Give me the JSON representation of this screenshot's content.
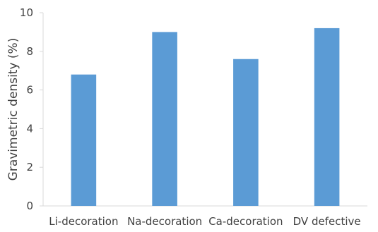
{
  "chart_data": {
    "type": "bar",
    "title": "",
    "xlabel": "",
    "ylabel": "Gravimetric density (%)",
    "categories": [
      "Li-decoration",
      "Na-decoration",
      "Ca-decoration",
      "DV defective"
    ],
    "values": [
      6.8,
      9.0,
      7.6,
      9.2
    ],
    "ylim": [
      0,
      10
    ],
    "yticks": [
      0,
      2,
      4,
      6,
      8,
      10
    ],
    "ytick_labels": [
      "0",
      "2",
      "4",
      "6",
      "8",
      "10"
    ],
    "grid": false,
    "legend": "none",
    "bar_color": "#5B9BD5",
    "axis_color": "#D9D9D9"
  }
}
